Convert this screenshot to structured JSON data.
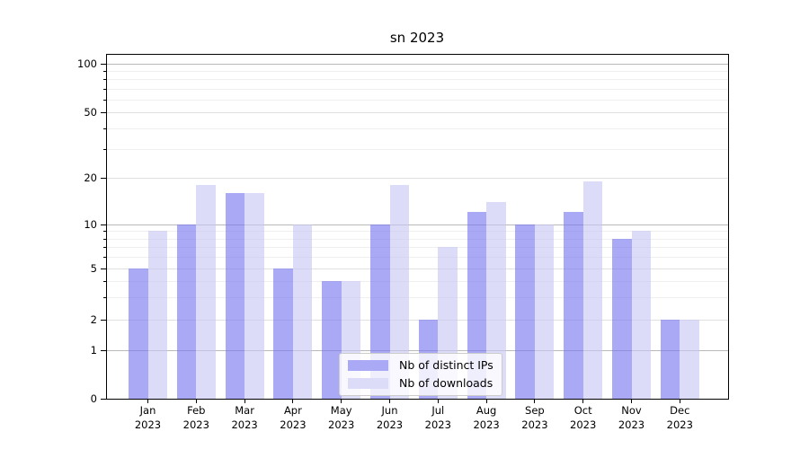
{
  "chart_data": {
    "type": "bar",
    "title": "sn 2023",
    "categories": [
      "Jan 2023",
      "Feb 2023",
      "Mar 2023",
      "Apr 2023",
      "May 2023",
      "Jun 2023",
      "Jul 2023",
      "Aug 2023",
      "Sep 2023",
      "Oct 2023",
      "Nov 2023",
      "Dec 2023"
    ],
    "series": [
      {
        "name": "Nb of distinct IPs",
        "color": "#a9a9f5",
        "values": [
          5,
          10,
          16,
          5,
          4,
          10,
          2,
          12,
          10,
          12,
          8,
          2
        ]
      },
      {
        "name": "Nb of downloads",
        "color": "#dcdcf9",
        "values": [
          9,
          18,
          16,
          10,
          4,
          18,
          7,
          14,
          10,
          19,
          9,
          2
        ]
      }
    ],
    "xlabel": "",
    "ylabel": "",
    "yscale": "symlog",
    "ylim": [
      0,
      115
    ],
    "y_major_ticks": [
      0,
      1,
      2,
      5,
      10,
      20,
      50,
      100
    ],
    "y_minor_ticks": [
      3,
      4,
      6,
      7,
      8,
      9,
      30,
      40,
      60,
      70,
      80,
      90
    ],
    "grid": true,
    "legend": {
      "position": "lower-center",
      "entries": [
        "Nb of distinct IPs",
        "Nb of downloads"
      ]
    }
  }
}
